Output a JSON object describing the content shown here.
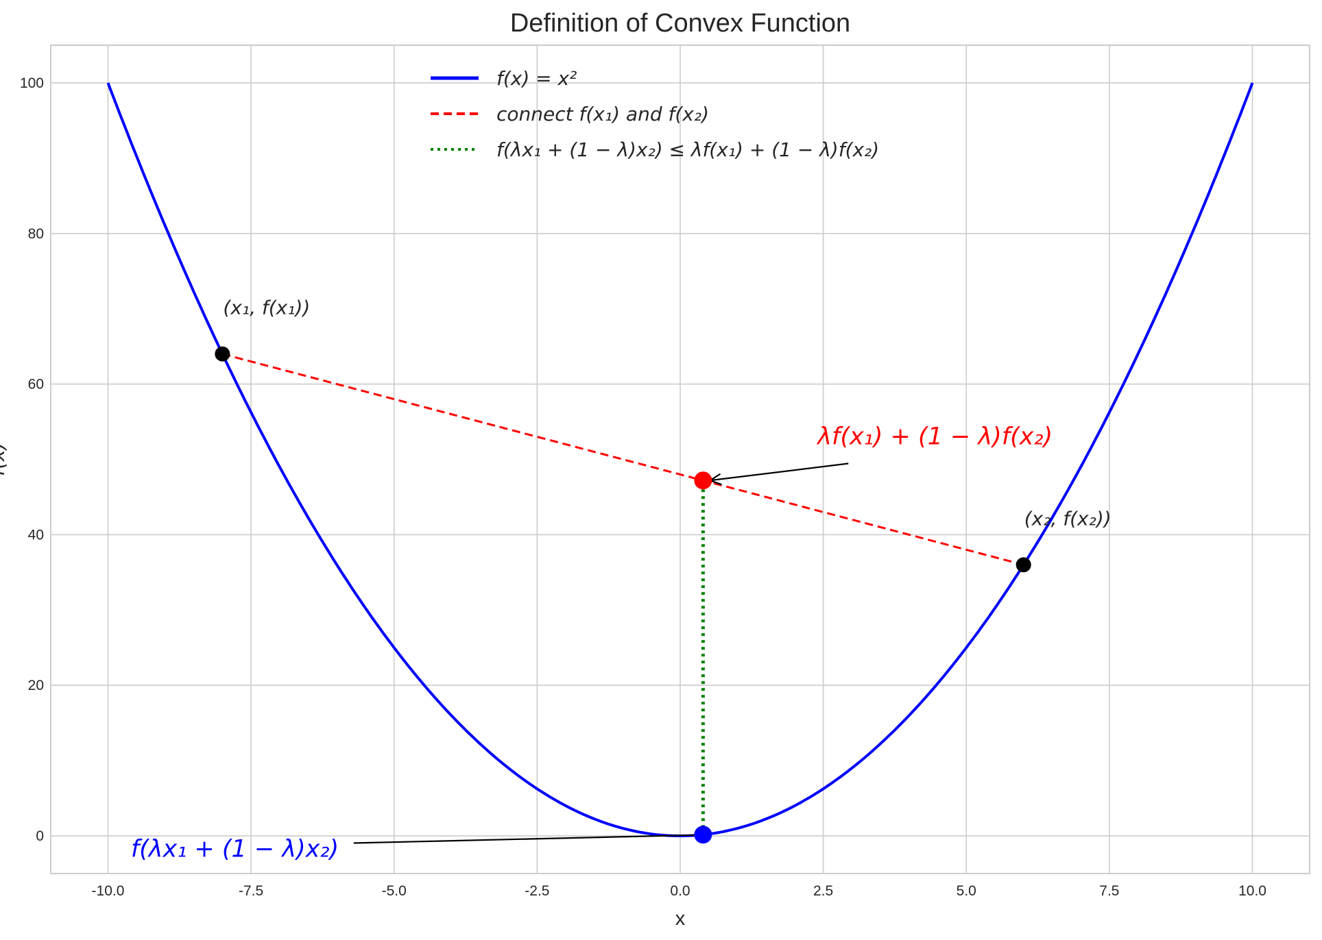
{
  "chart_data": {
    "type": "line",
    "title": "Definition of Convex Function",
    "xlabel": "x",
    "ylabel": "f(x)",
    "xlim": [
      -11,
      11
    ],
    "ylim": [
      -5,
      105
    ],
    "xticks": [
      -10,
      -7.5,
      -5,
      -2.5,
      0,
      2.5,
      5,
      7.5,
      10
    ],
    "xtick_labels": [
      "-10.0",
      "-7.5",
      "-5.0",
      "-2.5",
      "0.0",
      "2.5",
      "5.0",
      "7.5",
      "10.0"
    ],
    "yticks": [
      0,
      20,
      40,
      60,
      80,
      100
    ],
    "ytick_labels": [
      "0",
      "20",
      "40",
      "60",
      "80",
      "100"
    ],
    "grid": true,
    "legend_position": "top-center",
    "series": [
      {
        "name": "f(x) = x²",
        "kind": "curve",
        "function": "x^2",
        "x_range": [
          -10,
          10
        ],
        "color": "#0000ff",
        "style": "solid"
      },
      {
        "name": "connect f(x₁) and f(x₂)",
        "kind": "segment",
        "x": [
          -8,
          6
        ],
        "y": [
          64,
          36
        ],
        "color": "#ff0000",
        "style": "dashed"
      },
      {
        "name": "f(λx₁ + (1 − λ)x₂) ≤ λf(x₁) + (1 − λ)f(x₂)",
        "kind": "segment",
        "x": [
          0.4,
          0.4
        ],
        "y": [
          0.16,
          47.2
        ],
        "color": "#008000",
        "style": "dotted"
      }
    ],
    "points": [
      {
        "x": -8,
        "y": 64,
        "color": "#000000",
        "label": "(x₁, f(x₁))"
      },
      {
        "x": 6,
        "y": 36,
        "color": "#000000",
        "label": "(x₂, f(x₂))"
      },
      {
        "x": 0.4,
        "y": 47.2,
        "color": "#ff0000"
      },
      {
        "x": 0.4,
        "y": 0.16,
        "color": "#0000ff"
      }
    ],
    "annotations": [
      {
        "text": "λf(x₁) + (1 − λ)f(x₂)",
        "color": "#ff0000",
        "text_at": [
          2.4,
          52
        ],
        "arrow_to": [
          0.4,
          47.2
        ]
      },
      {
        "text": "f(λx₁ + (1 − λ)x₂)",
        "color": "#0000ff",
        "text_at": [
          -9.6,
          -1.5
        ],
        "arrow_to": [
          0.4,
          0.16
        ]
      }
    ],
    "lambda": 0.4
  }
}
